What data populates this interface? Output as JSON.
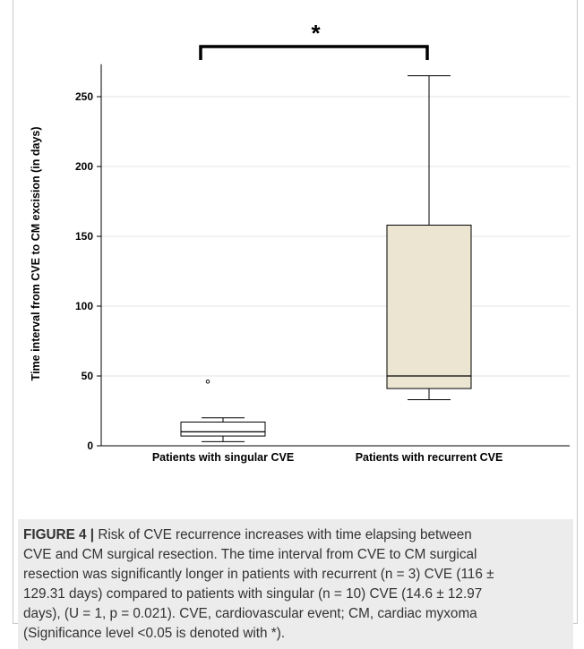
{
  "chart_data": {
    "type": "box",
    "ylabel": "Time interval from CVE to CM excision (in days)",
    "xlabel": "",
    "ylim": [
      0,
      270
    ],
    "yticks": [
      0,
      50,
      100,
      150,
      200,
      250
    ],
    "grid": "horizontal",
    "categories": [
      "Patients with singular CVE",
      "Patients with recurrent CVE"
    ],
    "boxes": [
      {
        "category": "Patients with singular CVE",
        "whisker_low": 3,
        "q1": 7,
        "median": 10,
        "q3": 17,
        "whisker_high": 20,
        "outliers": [
          46
        ],
        "fill": "#ffffff"
      },
      {
        "category": "Patients with recurrent CVE",
        "whisker_low": 33,
        "q1": 41,
        "median": 50,
        "q3": 158,
        "whisker_high": 265,
        "outliers": [],
        "fill": "#ebe5d1"
      }
    ],
    "significance": {
      "label": "*",
      "between": [
        0,
        1
      ]
    }
  },
  "caption": {
    "label": "FIGURE 4 |",
    "lines": [
      "Risk of CVE recurrence increases with time elapsing between",
      "CVE and CM surgical resection. The time interval from CVE to CM surgical",
      "resection was significantly longer in patients with recurrent (n = 3) CVE (116 ±",
      "129.31 days) compared to patients with singular (n = 10) CVE (14.6 ± 12.97",
      "days), (U = 1, p = 0.021). CVE, cardiovascular event; CM, cardiac myxoma",
      "(Significance level <0.05 is denoted with *)."
    ]
  }
}
